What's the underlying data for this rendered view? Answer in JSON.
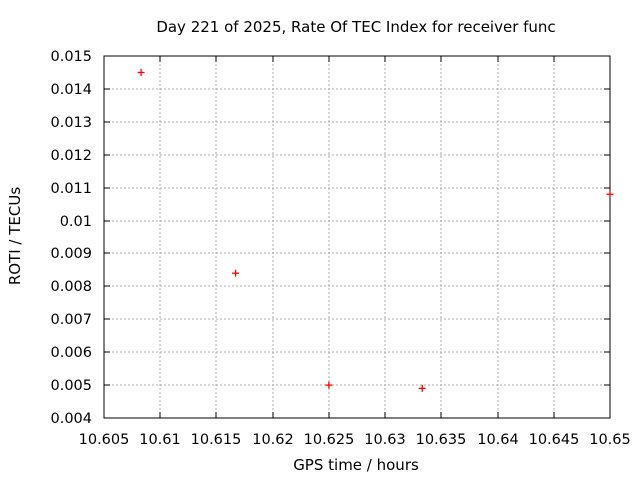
{
  "window": {
    "title": "Day 221 of 2025, Rate Of TEC Index for receiver func"
  },
  "chart_data": {
    "type": "scatter",
    "title": "Day 221 of 2025, Rate Of TEC Index for receiver func",
    "xlabel": "GPS time / hours",
    "ylabel": "ROTI / TECUs",
    "xlim": [
      10.605,
      10.65
    ],
    "ylim": [
      0.004,
      0.015
    ],
    "xticks": [
      10.605,
      10.61,
      10.615,
      10.62,
      10.625,
      10.63,
      10.635,
      10.64,
      10.645,
      10.65
    ],
    "xtick_labels": [
      "10.605",
      "10.61",
      "10.615",
      "10.62",
      "10.625",
      "10.63",
      "10.635",
      "10.64",
      "10.645",
      "10.65"
    ],
    "yticks": [
      0.004,
      0.005,
      0.006,
      0.007,
      0.008,
      0.009,
      0.01,
      0.011,
      0.012,
      0.013,
      0.014,
      0.015
    ],
    "ytick_labels": [
      "0.004",
      "0.005",
      "0.006",
      "0.007",
      "0.008",
      "0.009",
      "0.01",
      "0.011",
      "0.012",
      "0.013",
      "0.014",
      "0.015"
    ],
    "grid": true,
    "legend": "none",
    "marker": "plus",
    "series": [
      {
        "name": "ROTI",
        "points": [
          [
            10.6083,
            0.0145
          ],
          [
            10.6167,
            0.0084
          ],
          [
            10.625,
            0.005
          ],
          [
            10.6333,
            0.0049
          ],
          [
            10.65,
            0.0108
          ]
        ]
      }
    ]
  },
  "colors": {
    "background": "#ffffff",
    "axis": "#000000",
    "grid": "#aaaaaa",
    "text": "#000000",
    "marker": "#ff0000"
  }
}
